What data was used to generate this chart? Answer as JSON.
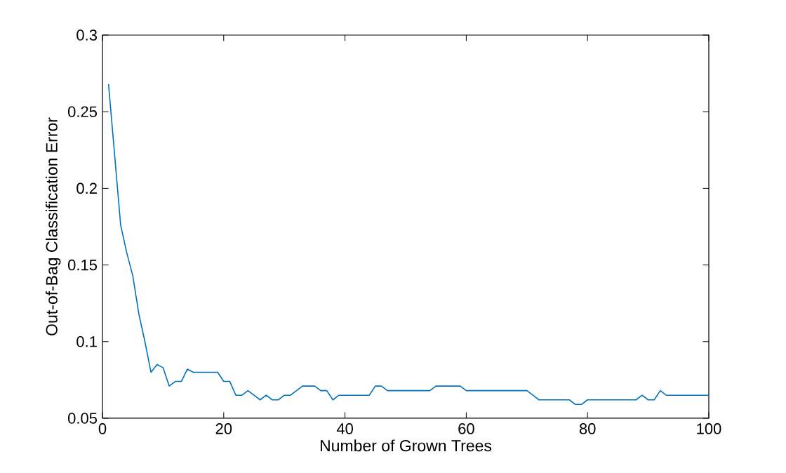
{
  "chart_data": {
    "type": "line",
    "xlabel": "Number of Grown Trees",
    "ylabel": "Out-of-Bag Classification Error",
    "xlim": [
      0,
      100
    ],
    "ylim": [
      0.05,
      0.3
    ],
    "xticks": [
      0,
      20,
      40,
      60,
      80,
      100
    ],
    "yticks": [
      0.05,
      0.1,
      0.15,
      0.2,
      0.25,
      0.3
    ],
    "grid": false,
    "marker": "none",
    "line_style": "solid",
    "series": [
      {
        "color": "#0072bd",
        "x": [
          1,
          2,
          3,
          4,
          5,
          6,
          7,
          8,
          9,
          10,
          11,
          12,
          13,
          14,
          15,
          19,
          20,
          21,
          22,
          23,
          24,
          25,
          26,
          27,
          28,
          29,
          30,
          31,
          32,
          33,
          35,
          36,
          37,
          38,
          39,
          44,
          45,
          46,
          47,
          54,
          55,
          59,
          60,
          70,
          71,
          72,
          77,
          78,
          79,
          80,
          88,
          89,
          90,
          91,
          92,
          93,
          100
        ],
        "values": [
          0.268,
          0.222,
          0.176,
          0.158,
          0.143,
          0.118,
          0.1,
          0.08,
          0.085,
          0.083,
          0.071,
          0.074,
          0.074,
          0.082,
          0.08,
          0.08,
          0.074,
          0.074,
          0.065,
          0.065,
          0.068,
          0.065,
          0.062,
          0.065,
          0.062,
          0.062,
          0.065,
          0.065,
          0.068,
          0.071,
          0.071,
          0.068,
          0.068,
          0.062,
          0.065,
          0.065,
          0.071,
          0.071,
          0.068,
          0.068,
          0.071,
          0.071,
          0.068,
          0.068,
          0.065,
          0.062,
          0.062,
          0.059,
          0.059,
          0.062,
          0.062,
          0.065,
          0.062,
          0.062,
          0.068,
          0.065,
          0.065
        ]
      }
    ]
  }
}
